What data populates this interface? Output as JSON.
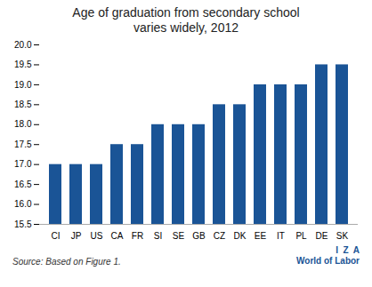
{
  "chart_data": {
    "type": "bar",
    "title": "Age of graduation from secondary school",
    "subtitle": "varies widely, 2012",
    "categories": [
      "CI",
      "JP",
      "US",
      "CA",
      "FR",
      "SI",
      "SE",
      "GB",
      "CZ",
      "DK",
      "EE",
      "IT",
      "PL",
      "DE",
      "SK"
    ],
    "values": [
      17.0,
      17.0,
      17.0,
      17.5,
      17.5,
      18.0,
      18.0,
      18.0,
      18.5,
      18.5,
      19.0,
      19.0,
      19.0,
      19.5,
      19.5
    ],
    "color": "#1a5496",
    "ylim": [
      15.5,
      20.0
    ],
    "yticks": [
      15.5,
      {
        "value": 16,
        "label": "16.0"
      },
      16.5,
      {
        "value": 17,
        "label": "17.0"
      },
      17.5,
      {
        "value": 18,
        "label": "18.0"
      },
      18.5,
      {
        "value": 19,
        "label": "19.0"
      },
      19.5,
      {
        "value": 20,
        "label": "20.0"
      }
    ],
    "grid": false,
    "annotations": [
      "Source: Based on Figure 1.",
      "I  Z  A",
      "World of Labor"
    ]
  }
}
